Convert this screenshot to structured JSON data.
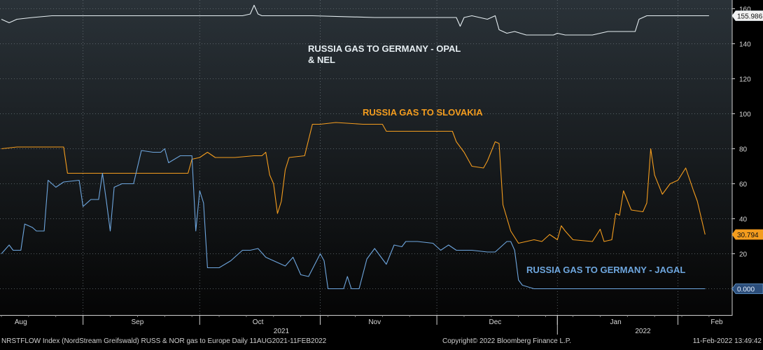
{
  "footer": {
    "left": "NRSTFLOW Index (NordStream Greifswald) RUSS & NOR gas to Europe  Daily 11AUG2021-11FEB2022",
    "center": "Copyright© 2022 Bloomberg Finance L.P.",
    "right": "11-Feb-2022 13:49:42"
  },
  "colors": {
    "background_top": "#2a3238",
    "background_bottom": "#050505",
    "grid": "#6a737a",
    "opal_nel": "#e6eef2",
    "slovakia": "#f39c1e",
    "jagal": "#6ea6de"
  },
  "chart_data": {
    "type": "line",
    "title": "",
    "xlabel": "",
    "ylabel": "",
    "ylim": [
      -15,
      165
    ],
    "y_ticks": [
      0,
      20,
      40,
      60,
      80,
      100,
      120,
      140,
      160
    ],
    "x_range": [
      "2021-08-11",
      "2022-02-11"
    ],
    "month_labels": [
      {
        "label": "Aug",
        "date": "2021-08-16"
      },
      {
        "label": "Sep",
        "date": "2021-09-15"
      },
      {
        "label": "Oct",
        "date": "2021-10-16"
      },
      {
        "label": "Nov",
        "date": "2021-11-15"
      },
      {
        "label": "Dec",
        "date": "2021-12-16"
      },
      {
        "label": "Jan",
        "date": "2022-01-16"
      },
      {
        "label": "Feb",
        "date": "2022-02-11"
      }
    ],
    "month_dividers": [
      "2021-09-01",
      "2021-10-01",
      "2021-11-01",
      "2021-12-01",
      "2022-01-01",
      "2022-02-01"
    ],
    "year_labels": [
      {
        "label": "2021",
        "date": "2021-10-22"
      },
      {
        "label": "2022",
        "date": "2022-01-23"
      }
    ],
    "year_divider": "2022-01-01",
    "series": [
      {
        "name": "RUSSIA GAS TO GERMANY - OPAL & NEL",
        "key": "opal_nel",
        "last_value": "155.986",
        "points": [
          [
            "2021-08-11",
            154
          ],
          [
            "2021-08-13",
            152
          ],
          [
            "2021-08-15",
            154
          ],
          [
            "2021-08-19",
            155
          ],
          [
            "2021-08-24",
            156
          ],
          [
            "2021-09-01",
            156
          ],
          [
            "2021-09-15",
            156
          ],
          [
            "2021-09-30",
            156
          ],
          [
            "2021-10-12",
            156
          ],
          [
            "2021-10-14",
            157
          ],
          [
            "2021-10-15",
            162
          ],
          [
            "2021-10-16",
            157
          ],
          [
            "2021-10-17",
            156
          ],
          [
            "2021-10-30",
            156
          ],
          [
            "2021-11-15",
            155
          ],
          [
            "2021-11-30",
            155
          ],
          [
            "2021-12-06",
            155
          ],
          [
            "2021-12-07",
            150
          ],
          [
            "2021-12-08",
            155
          ],
          [
            "2021-12-10",
            156
          ],
          [
            "2021-12-12",
            155
          ],
          [
            "2021-12-14",
            154
          ],
          [
            "2021-12-16",
            156
          ],
          [
            "2021-12-17",
            148
          ],
          [
            "2021-12-19",
            146
          ],
          [
            "2021-12-21",
            147
          ],
          [
            "2021-12-24",
            145
          ],
          [
            "2021-12-31",
            145
          ],
          [
            "2022-01-01",
            146
          ],
          [
            "2022-01-03",
            145
          ],
          [
            "2022-01-10",
            145
          ],
          [
            "2022-01-14",
            147
          ],
          [
            "2022-01-21",
            147
          ],
          [
            "2022-01-22",
            154
          ],
          [
            "2022-01-24",
            156
          ],
          [
            "2022-02-09",
            156
          ]
        ]
      },
      {
        "name": "RUSSIA GAS TO SLOVAKIA",
        "key": "slovakia",
        "last_value": "30.794",
        "points": [
          [
            "2021-08-11",
            80
          ],
          [
            "2021-08-15",
            81
          ],
          [
            "2021-08-20",
            81
          ],
          [
            "2021-08-27",
            81
          ],
          [
            "2021-08-28",
            66
          ],
          [
            "2021-09-02",
            66
          ],
          [
            "2021-09-15",
            66
          ],
          [
            "2021-09-25",
            66
          ],
          [
            "2021-09-28",
            66
          ],
          [
            "2021-09-29",
            74
          ],
          [
            "2021-10-01",
            75
          ],
          [
            "2021-10-03",
            78
          ],
          [
            "2021-10-05",
            75
          ],
          [
            "2021-10-10",
            75
          ],
          [
            "2021-10-15",
            76
          ],
          [
            "2021-10-17",
            76
          ],
          [
            "2021-10-18",
            78
          ],
          [
            "2021-10-19",
            65
          ],
          [
            "2021-10-20",
            60
          ],
          [
            "2021-10-21",
            43
          ],
          [
            "2021-10-22",
            50
          ],
          [
            "2021-10-23",
            68
          ],
          [
            "2021-10-24",
            75
          ],
          [
            "2021-10-28",
            76
          ],
          [
            "2021-10-30",
            94
          ],
          [
            "2021-11-01",
            94
          ],
          [
            "2021-11-05",
            95
          ],
          [
            "2021-11-12",
            94
          ],
          [
            "2021-11-17",
            94
          ],
          [
            "2021-11-18",
            90
          ],
          [
            "2021-11-25",
            90
          ],
          [
            "2021-12-05",
            90
          ],
          [
            "2021-12-06",
            84
          ],
          [
            "2021-12-08",
            78
          ],
          [
            "2021-12-10",
            70
          ],
          [
            "2021-12-13",
            69
          ],
          [
            "2021-12-14",
            73
          ],
          [
            "2021-12-16",
            84
          ],
          [
            "2021-12-17",
            83
          ],
          [
            "2021-12-18",
            48
          ],
          [
            "2021-12-20",
            33
          ],
          [
            "2021-12-22",
            26
          ],
          [
            "2021-12-26",
            28
          ],
          [
            "2021-12-28",
            27
          ],
          [
            "2021-12-30",
            31
          ],
          [
            "2022-01-01",
            28
          ],
          [
            "2022-01-02",
            36
          ],
          [
            "2022-01-03",
            33
          ],
          [
            "2022-01-05",
            28
          ],
          [
            "2022-01-10",
            27
          ],
          [
            "2022-01-12",
            34
          ],
          [
            "2022-01-13",
            27
          ],
          [
            "2022-01-15",
            28
          ],
          [
            "2022-01-16",
            43
          ],
          [
            "2022-01-17",
            42
          ],
          [
            "2022-01-18",
            56
          ],
          [
            "2022-01-20",
            45
          ],
          [
            "2022-01-23",
            44
          ],
          [
            "2022-01-24",
            49
          ],
          [
            "2022-01-25",
            80
          ],
          [
            "2022-01-26",
            65
          ],
          [
            "2022-01-28",
            54
          ],
          [
            "2022-01-30",
            60
          ],
          [
            "2022-02-01",
            62
          ],
          [
            "2022-02-03",
            69
          ],
          [
            "2022-02-05",
            56
          ],
          [
            "2022-02-06",
            50
          ],
          [
            "2022-02-08",
            31
          ]
        ]
      },
      {
        "name": "RUSSIA GAS TO GERMANY - JAGAL",
        "key": "jagal",
        "last_value": "0.000",
        "points": [
          [
            "2021-08-11",
            20
          ],
          [
            "2021-08-13",
            25
          ],
          [
            "2021-08-14",
            22
          ],
          [
            "2021-08-16",
            22
          ],
          [
            "2021-08-17",
            37
          ],
          [
            "2021-08-19",
            35
          ],
          [
            "2021-08-20",
            33
          ],
          [
            "2021-08-22",
            33
          ],
          [
            "2021-08-23",
            62
          ],
          [
            "2021-08-25",
            58
          ],
          [
            "2021-08-27",
            61
          ],
          [
            "2021-08-31",
            62
          ],
          [
            "2021-09-01",
            47
          ],
          [
            "2021-09-03",
            51
          ],
          [
            "2021-09-05",
            51
          ],
          [
            "2021-09-06",
            66
          ],
          [
            "2021-09-07",
            50
          ],
          [
            "2021-09-08",
            33
          ],
          [
            "2021-09-09",
            58
          ],
          [
            "2021-09-11",
            60
          ],
          [
            "2021-09-14",
            60
          ],
          [
            "2021-09-16",
            79
          ],
          [
            "2021-09-19",
            78
          ],
          [
            "2021-09-21",
            78
          ],
          [
            "2021-09-22",
            80
          ],
          [
            "2021-09-23",
            72
          ],
          [
            "2021-09-26",
            76
          ],
          [
            "2021-09-29",
            76
          ],
          [
            "2021-09-30",
            33
          ],
          [
            "2021-10-01",
            56
          ],
          [
            "2021-10-02",
            49
          ],
          [
            "2021-10-03",
            12
          ],
          [
            "2021-10-06",
            12
          ],
          [
            "2021-10-09",
            16
          ],
          [
            "2021-10-12",
            22
          ],
          [
            "2021-10-14",
            22
          ],
          [
            "2021-10-16",
            23
          ],
          [
            "2021-10-18",
            18
          ],
          [
            "2021-10-20",
            16
          ],
          [
            "2021-10-23",
            13
          ],
          [
            "2021-10-25",
            18
          ],
          [
            "2021-10-27",
            8
          ],
          [
            "2021-10-29",
            7
          ],
          [
            "2021-11-01",
            20
          ],
          [
            "2021-11-02",
            16
          ],
          [
            "2021-11-03",
            0
          ],
          [
            "2021-11-05",
            0
          ],
          [
            "2021-11-07",
            0
          ],
          [
            "2021-11-08",
            7
          ],
          [
            "2021-11-09",
            0
          ],
          [
            "2021-11-11",
            0
          ],
          [
            "2021-11-13",
            17
          ],
          [
            "2021-11-15",
            23
          ],
          [
            "2021-11-17",
            17
          ],
          [
            "2021-11-18",
            14
          ],
          [
            "2021-11-20",
            25
          ],
          [
            "2021-11-22",
            24
          ],
          [
            "2021-11-23",
            27
          ],
          [
            "2021-11-26",
            27
          ],
          [
            "2021-11-30",
            26
          ],
          [
            "2021-12-02",
            22
          ],
          [
            "2021-12-04",
            25
          ],
          [
            "2021-12-06",
            22
          ],
          [
            "2021-12-10",
            22
          ],
          [
            "2021-12-14",
            21
          ],
          [
            "2021-12-16",
            21
          ],
          [
            "2021-12-18",
            25
          ],
          [
            "2021-12-19",
            27
          ],
          [
            "2021-12-20",
            27
          ],
          [
            "2021-12-21",
            22
          ],
          [
            "2021-12-22",
            5
          ],
          [
            "2021-12-23",
            2
          ],
          [
            "2021-12-26",
            0
          ],
          [
            "2022-02-08",
            0
          ]
        ]
      }
    ]
  }
}
